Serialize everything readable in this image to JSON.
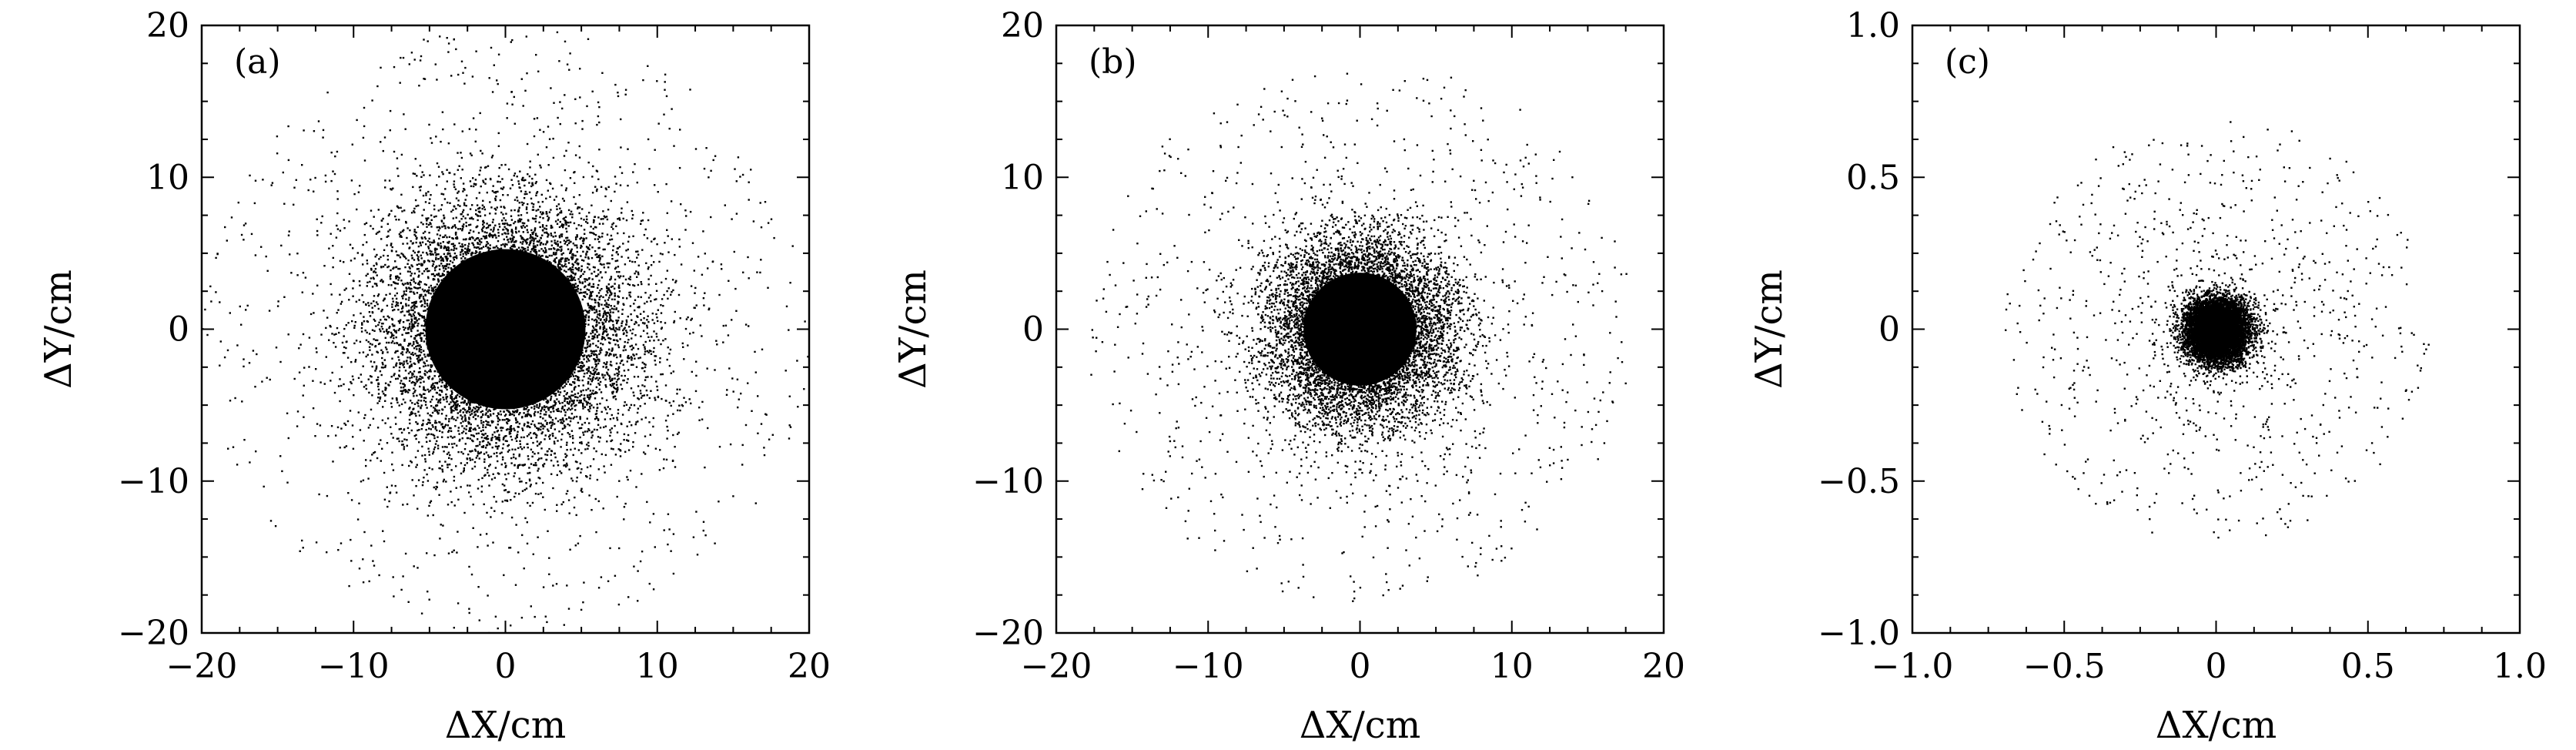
{
  "chart_data": [
    {
      "type": "scatter",
      "panel_label": "(a)",
      "xlabel": "ΔX/cm",
      "ylabel": "ΔY/cm",
      "xlim": [
        -20,
        20
      ],
      "ylim": [
        -20,
        20
      ],
      "xticks": [
        -20,
        -10,
        0,
        10,
        20
      ],
      "yticks": [
        -20,
        -10,
        0,
        10,
        20
      ],
      "xtick_labels": [
        "−20",
        "−10",
        "0",
        "10",
        "20"
      ],
      "ytick_labels": [
        "−20",
        "−10",
        "0",
        "10",
        "20"
      ],
      "grid": false,
      "series": [
        {
          "distribution": "radially symmetric cloud of points, dense core centred at (0, 0)",
          "center": [
            0,
            0
          ],
          "core_radius": 8.5,
          "halo_extent": 20,
          "point_color": "#000000"
        }
      ]
    },
    {
      "type": "scatter",
      "panel_label": "(b)",
      "xlabel": "ΔX/cm",
      "ylabel": "ΔY/cm",
      "xlim": [
        -20,
        20
      ],
      "ylim": [
        -20,
        20
      ],
      "xticks": [
        -20,
        -10,
        0,
        10,
        20
      ],
      "yticks": [
        -20,
        -10,
        0,
        10,
        20
      ],
      "xtick_labels": [
        "−20",
        "−10",
        "0",
        "10",
        "20"
      ],
      "ytick_labels": [
        "−20",
        "−10",
        "0",
        "10",
        "20"
      ],
      "grid": false,
      "series": [
        {
          "distribution": "radially symmetric cloud of points, dense core centred at (0, 0)",
          "center": [
            0,
            0
          ],
          "core_radius": 6,
          "halo_extent": 18,
          "point_color": "#000000"
        }
      ]
    },
    {
      "type": "scatter",
      "panel_label": "(c)",
      "xlabel": "ΔX/cm",
      "ylabel": "ΔY/cm",
      "xlim": [
        -1.0,
        1.0
      ],
      "ylim": [
        -1.0,
        1.0
      ],
      "xticks": [
        -1.0,
        -0.5,
        0,
        0.5,
        1.0
      ],
      "yticks": [
        -1.0,
        -0.5,
        0,
        0.5,
        1.0
      ],
      "xtick_labels": [
        "−1.0",
        "−0.5",
        "0",
        "0.5",
        "1.0"
      ],
      "ytick_labels": [
        "−1.0",
        "−0.5",
        "0",
        "0.5",
        "1.0"
      ],
      "grid": false,
      "series": [
        {
          "distribution": "radially symmetric cloud of points, dense core centred at (0, 0)",
          "center": [
            0,
            0
          ],
          "core_radius": 0.1,
          "halo_extent": 0.7,
          "point_color": "#000000"
        }
      ]
    }
  ]
}
